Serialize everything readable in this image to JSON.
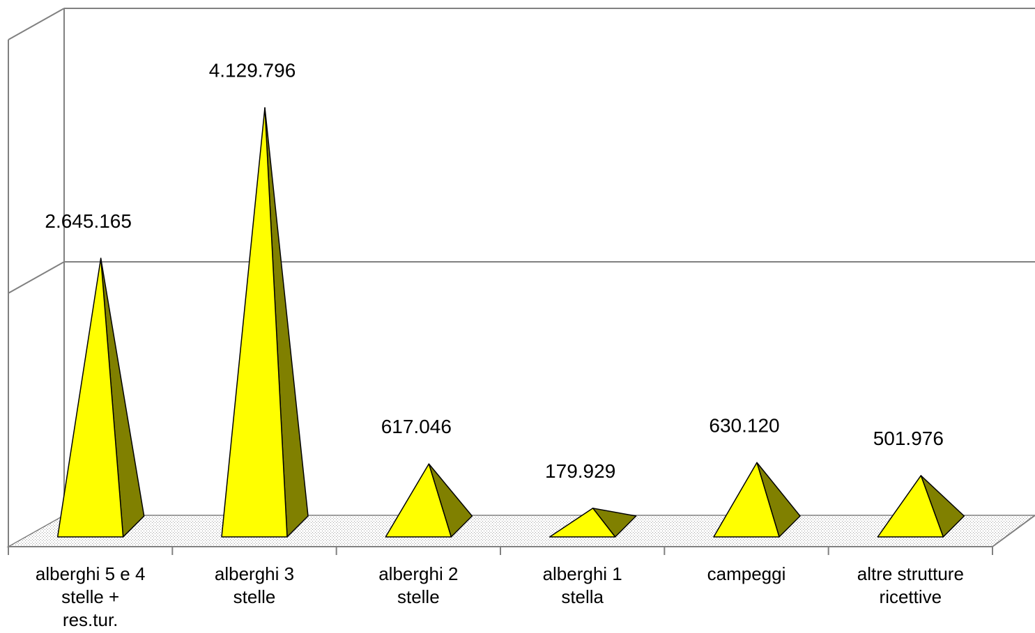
{
  "chart_data": {
    "type": "bar",
    "style": "3d-pyramid",
    "categories": [
      [
        "alberghi 5 e 4",
        "stelle +",
        "res.tur."
      ],
      [
        "alberghi 3",
        "stelle"
      ],
      [
        "alberghi 2",
        "stelle"
      ],
      [
        "alberghi 1",
        "stella"
      ],
      [
        "campeggi"
      ],
      [
        "altre strutture",
        "ricettive"
      ]
    ],
    "values": [
      2645165,
      4129796,
      617046,
      179929,
      630120,
      501976
    ],
    "value_labels": [
      "2.645.165",
      "4.129.796",
      "617.046",
      "179.929",
      "630.120",
      "501.976"
    ],
    "ylim": [
      0,
      5000000
    ],
    "grid": true,
    "legend": "none",
    "colors": {
      "face": "#ffff00",
      "side": "#808000",
      "floor": "#c0c0c0",
      "axis": "#808080",
      "stroke": "#000000"
    }
  }
}
